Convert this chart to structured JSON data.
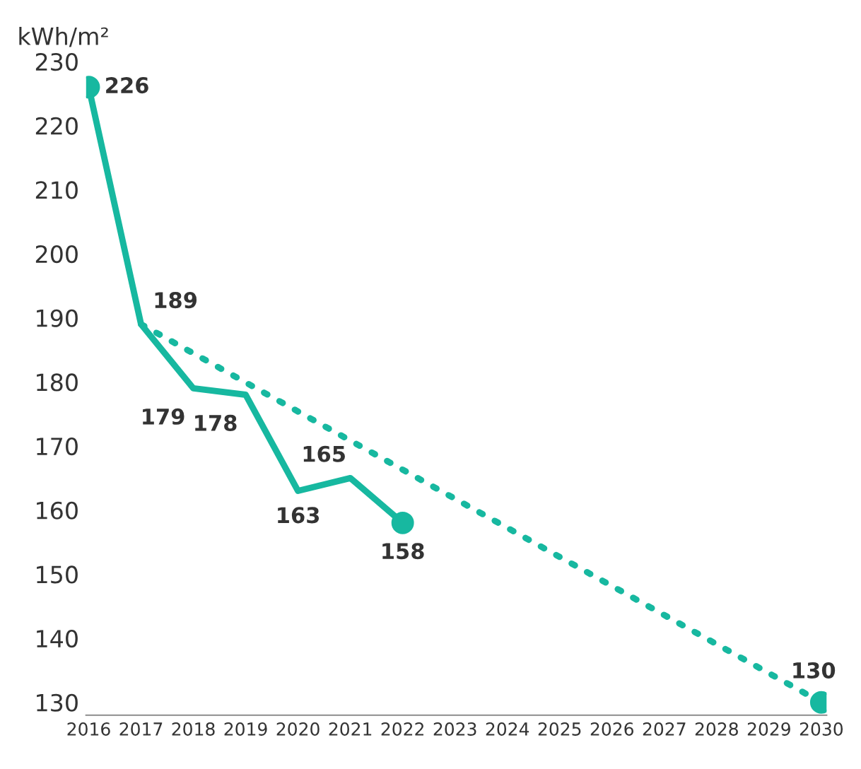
{
  "chart_data": {
    "type": "line",
    "ylabel": "kWh/m²",
    "x": [
      2016,
      2017,
      2018,
      2019,
      2020,
      2021,
      2022
    ],
    "series": [
      {
        "color": "#17b8a0",
        "values": [
          226,
          189,
          179,
          178,
          163,
          165,
          158
        ],
        "value_labels": [
          "226",
          "189",
          "179",
          "178",
          "163",
          "165",
          "158"
        ],
        "line_style": "solid"
      },
      {
        "color": "#17b8a0",
        "x": [
          2017,
          2030
        ],
        "values": [
          189,
          130
        ],
        "value_labels": [
          null,
          "130"
        ],
        "line_style": "dotted"
      },
      {
        "type": "scatter",
        "color": "#17b8a0",
        "x": [
          2016,
          2022,
          2030
        ],
        "values": [
          226,
          158,
          130
        ],
        "marker": "circle"
      }
    ],
    "xlim": [
      2015.95,
      2030.1
    ],
    "ylim": [
      128,
      230
    ],
    "xticks": [
      2016,
      2017,
      2018,
      2019,
      2020,
      2021,
      2022,
      2023,
      2024,
      2025,
      2026,
      2027,
      2028,
      2029,
      2030
    ],
    "yticks": [
      130,
      140,
      150,
      160,
      170,
      180,
      190,
      200,
      210,
      220,
      230
    ],
    "grid": false,
    "legend": false
  }
}
